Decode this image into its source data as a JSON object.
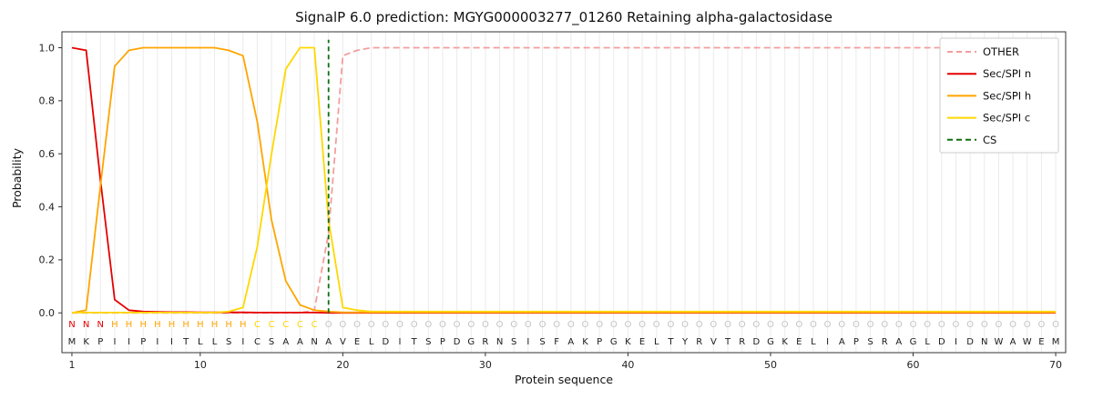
{
  "chart_data": {
    "type": "line",
    "title": "SignalP 6.0 prediction: MGYG000003277_01260 Retaining alpha-galactosidase",
    "xlabel": "Protein sequence",
    "ylabel": "Probability",
    "xticks": [
      1,
      10,
      20,
      30,
      40,
      50,
      60,
      70
    ],
    "yticks": [
      0.0,
      0.2,
      0.4,
      0.6,
      0.8,
      1.0
    ],
    "xlim": [
      0.3,
      70.7
    ],
    "ylim": [
      -0.15,
      1.06
    ],
    "grid": "vertical-per-residue",
    "legend_position": "upper right",
    "sequence": "MKPIIPIITLLSICSAANAVELDITSPDGRNSISFAKPGKELTYRVTRDGKELIAPSRAGLDIDNWAWEM",
    "region_labels": "NNNHHHHHHHHHHCCCCCOOOOOOOOOOOOOOOOOOOOOOOOOOOOOOOOOOOOOOOOOOOOOOOOOOOO",
    "region_colors": {
      "N": "#e40000",
      "H": "#ffa500",
      "C": "#ffd700",
      "O": "#c4c4c4"
    },
    "series": [
      {
        "name": "OTHER",
        "color": "#f59c9c",
        "dash": true,
        "values": [
          0,
          0,
          0,
          0,
          0,
          0,
          0,
          0,
          0,
          0,
          0,
          0,
          0,
          0,
          0,
          0,
          0,
          0.01,
          0.3,
          0.97,
          0.99,
          1,
          1,
          1,
          1,
          1,
          1,
          1,
          1,
          1,
          1,
          1,
          1,
          1,
          1,
          1,
          1,
          1,
          1,
          1,
          1,
          1,
          1,
          1,
          1,
          1,
          1,
          1,
          1,
          1,
          1,
          1,
          1,
          1,
          1,
          1,
          1,
          1,
          1,
          1,
          1,
          1,
          1,
          1,
          1,
          1,
          1,
          1,
          1,
          1
        ]
      },
      {
        "name": "Sec/SPI n",
        "color": "#e50000",
        "dash": false,
        "values": [
          1,
          0.99,
          0.5,
          0.05,
          0.01,
          0.005,
          0.004,
          0.003,
          0.003,
          0.002,
          0.002,
          0.002,
          0.002,
          0.001,
          0.001,
          0.001,
          0.001,
          0.001,
          0,
          0,
          0,
          0,
          0,
          0,
          0,
          0,
          0,
          0,
          0,
          0,
          0,
          0,
          0,
          0,
          0,
          0,
          0,
          0,
          0,
          0,
          0,
          0,
          0,
          0,
          0,
          0,
          0,
          0,
          0,
          0,
          0,
          0,
          0,
          0,
          0,
          0,
          0,
          0,
          0,
          0,
          0,
          0,
          0,
          0,
          0,
          0,
          0,
          0,
          0,
          0
        ]
      },
      {
        "name": "Sec/SPI h",
        "color": "#ffa500",
        "dash": false,
        "values": [
          0,
          0.01,
          0.48,
          0.93,
          0.99,
          1,
          1,
          1,
          1,
          1,
          1,
          0.99,
          0.97,
          0.72,
          0.35,
          0.12,
          0.03,
          0.01,
          0.005,
          0.002,
          0.002,
          0.002,
          0.002,
          0.002,
          0.002,
          0.002,
          0.002,
          0.002,
          0.002,
          0.002,
          0.002,
          0.002,
          0.002,
          0.002,
          0.002,
          0.002,
          0.002,
          0.002,
          0.002,
          0.002,
          0.002,
          0.002,
          0.002,
          0.002,
          0.002,
          0.002,
          0.002,
          0.002,
          0.002,
          0.002,
          0.002,
          0.002,
          0.002,
          0.002,
          0.002,
          0.002,
          0.002,
          0.002,
          0.002,
          0.002,
          0.002,
          0.002,
          0.002,
          0.002,
          0.002,
          0.002,
          0.002,
          0.002,
          0.002,
          0.002
        ]
      },
      {
        "name": "Sec/SPI c",
        "color": "#ffd700",
        "dash": false,
        "values": [
          0.001,
          0.001,
          0.001,
          0.001,
          0.001,
          0.001,
          0.001,
          0.001,
          0.001,
          0.001,
          0.001,
          0.005,
          0.02,
          0.25,
          0.6,
          0.92,
          1,
          1,
          0.35,
          0.02,
          0.01,
          0.005,
          0.005,
          0.005,
          0.005,
          0.005,
          0.005,
          0.005,
          0.005,
          0.005,
          0.005,
          0.005,
          0.005,
          0.005,
          0.005,
          0.005,
          0.005,
          0.005,
          0.005,
          0.005,
          0.005,
          0.005,
          0.005,
          0.005,
          0.005,
          0.005,
          0.005,
          0.005,
          0.005,
          0.005,
          0.005,
          0.005,
          0.005,
          0.005,
          0.005,
          0.005,
          0.005,
          0.005,
          0.005,
          0.005,
          0.005,
          0.005,
          0.005,
          0.005,
          0.005,
          0.005,
          0.005,
          0.005,
          0.005,
          0.005
        ]
      }
    ],
    "cs_line": {
      "name": "CS",
      "x": 19,
      "color": "#0e6f0e",
      "dash": true
    },
    "legend": [
      "OTHER",
      "Sec/SPI n",
      "Sec/SPI h",
      "Sec/SPI c",
      "CS"
    ]
  }
}
